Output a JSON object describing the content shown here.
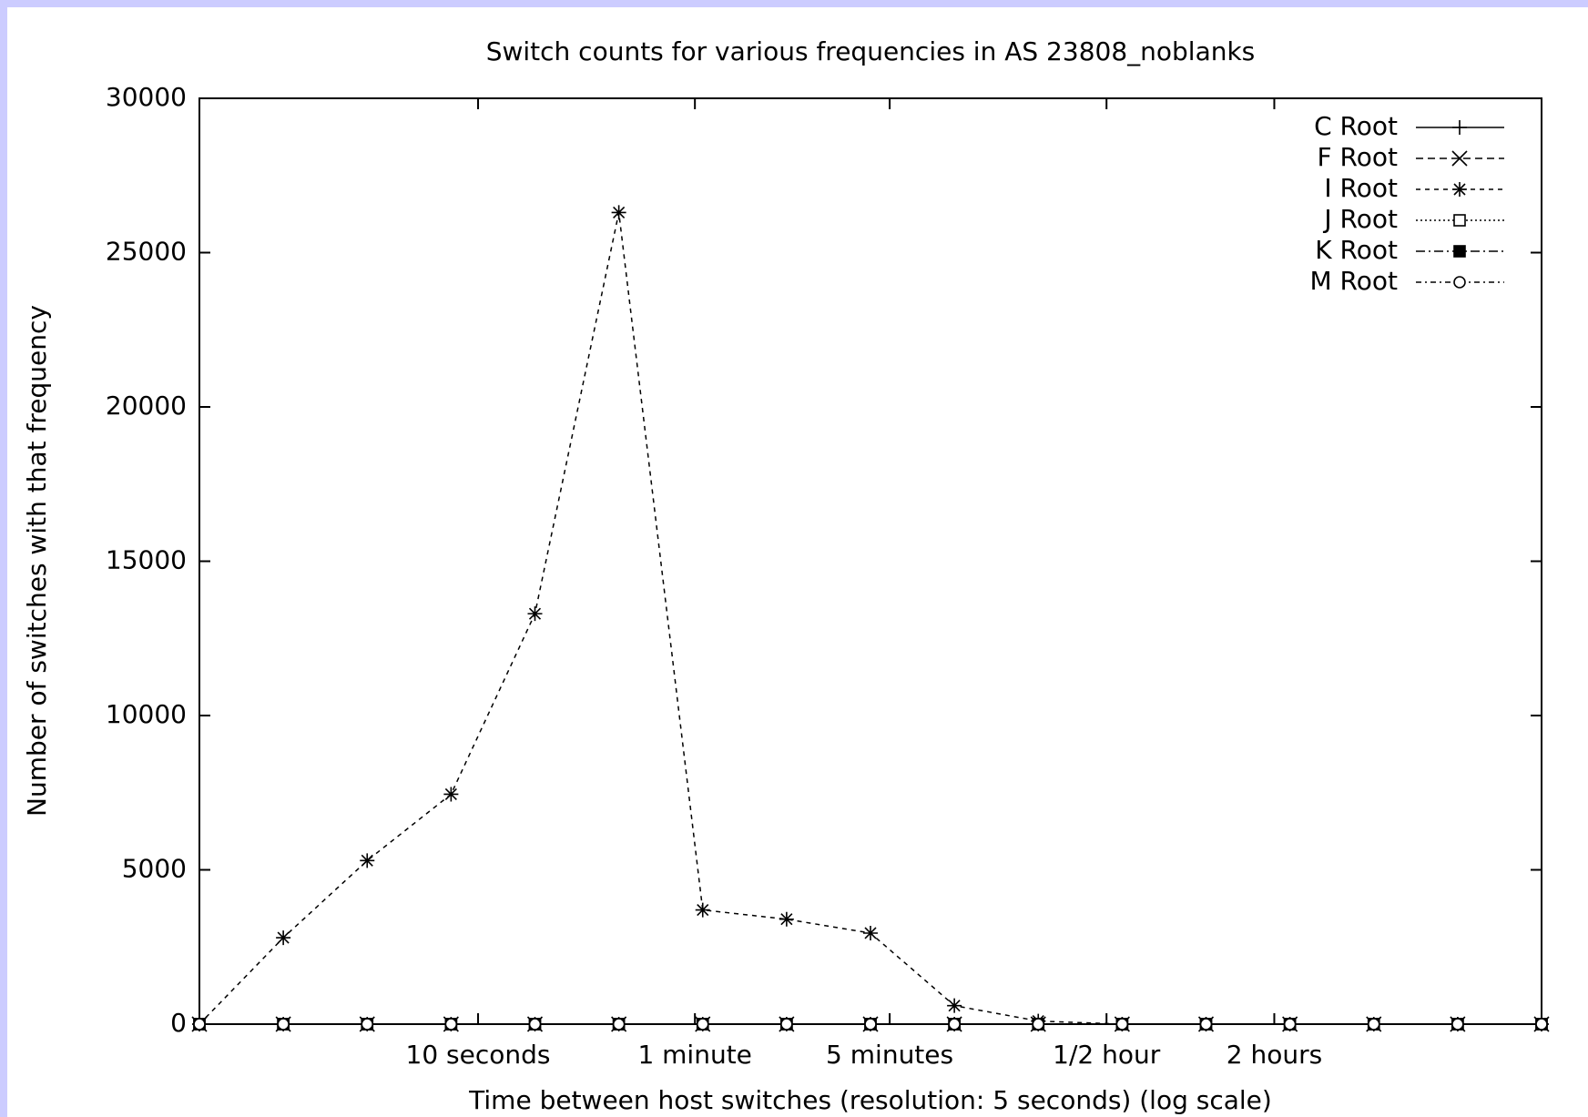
{
  "chart_data": {
    "type": "line",
    "title": "Switch counts for various frequencies in AS 23808_noblanks",
    "x_label": "Time between host switches (resolution: 5 seconds) (log scale)",
    "y_label": "Number of switches with that frequency",
    "x": [
      1,
      2,
      4,
      8,
      16,
      32,
      64,
      128,
      256,
      512,
      1024,
      2048,
      4096,
      8192,
      16384,
      32768,
      65536
    ],
    "xscale": "log",
    "xlim": [
      1,
      65536
    ],
    "xticks": [
      {
        "value": 10,
        "label": "10 seconds"
      },
      {
        "value": 60,
        "label": "1 minute"
      },
      {
        "value": 300,
        "label": "5 minutes"
      },
      {
        "value": 1800,
        "label": "1/2 hour"
      },
      {
        "value": 7200,
        "label": "2 hours"
      }
    ],
    "ylim": [
      0,
      30000
    ],
    "yticks": [
      0,
      5000,
      10000,
      15000,
      20000,
      25000,
      30000
    ],
    "legend": "top right",
    "series": [
      {
        "name": "C Root",
        "color": "#000000",
        "marker": "plus",
        "values": [
          0,
          0,
          0,
          0,
          0,
          0,
          0,
          0,
          0,
          0,
          0,
          0,
          0,
          0,
          0,
          0,
          0
        ]
      },
      {
        "name": "F Root",
        "color": "#000000",
        "marker": "cross",
        "values": [
          0,
          0,
          0,
          0,
          0,
          0,
          0,
          0,
          0,
          0,
          0,
          0,
          0,
          0,
          0,
          0,
          0
        ]
      },
      {
        "name": "I Root",
        "color": "#000000",
        "marker": "star",
        "values": [
          0,
          2800,
          5300,
          7450,
          13300,
          26300,
          3700,
          3400,
          2950,
          600,
          100,
          0,
          0,
          0,
          0,
          0,
          0
        ]
      },
      {
        "name": "J Root",
        "color": "#000000",
        "marker": "square",
        "values": [
          0,
          0,
          0,
          0,
          0,
          0,
          0,
          0,
          0,
          0,
          0,
          0,
          0,
          0,
          0,
          0,
          0
        ]
      },
      {
        "name": "K Root",
        "color": "#000000",
        "marker": "filled-square",
        "values": [
          0,
          0,
          0,
          0,
          0,
          0,
          0,
          0,
          0,
          0,
          0,
          0,
          0,
          0,
          0,
          0,
          0
        ]
      },
      {
        "name": "M Root",
        "color": "#000000",
        "marker": "circle",
        "values": [
          0,
          0,
          0,
          0,
          0,
          0,
          0,
          0,
          0,
          0,
          0,
          0,
          0,
          0,
          0,
          0,
          0
        ]
      }
    ]
  }
}
